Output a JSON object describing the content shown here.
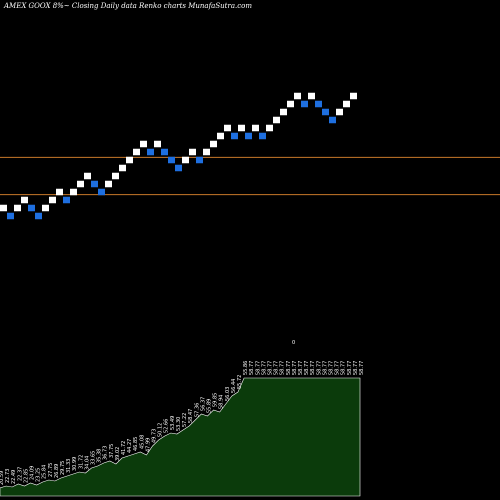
{
  "title": "AMEX  GOOX  8%~  Closing Daily data  Renko  charts MunafaSutra.com",
  "colors": {
    "background": "#000000",
    "up_brick": "#ffffff",
    "down_brick": "#1e6fe0",
    "reference_line": "#c8782a",
    "volume_fill": "#0b3b0b",
    "volume_stroke": "#ffffff"
  },
  "marker_label": "0",
  "chart_data": {
    "type": "renko",
    "legend": "none",
    "grid": false,
    "reference_lines": [
      46.5,
      39.5
    ],
    "bricks": [
      {
        "price": 37.0,
        "dir": "up"
      },
      {
        "price": 35.5,
        "dir": "down"
      },
      {
        "price": 37.0,
        "dir": "up"
      },
      {
        "price": 38.5,
        "dir": "up"
      },
      {
        "price": 37.0,
        "dir": "down"
      },
      {
        "price": 35.5,
        "dir": "down"
      },
      {
        "price": 37.0,
        "dir": "up"
      },
      {
        "price": 38.5,
        "dir": "up"
      },
      {
        "price": 40.0,
        "dir": "up"
      },
      {
        "price": 38.5,
        "dir": "down"
      },
      {
        "price": 40.0,
        "dir": "up"
      },
      {
        "price": 41.5,
        "dir": "up"
      },
      {
        "price": 43.0,
        "dir": "up"
      },
      {
        "price": 41.5,
        "dir": "down"
      },
      {
        "price": 40.0,
        "dir": "down"
      },
      {
        "price": 41.5,
        "dir": "up"
      },
      {
        "price": 43.0,
        "dir": "up"
      },
      {
        "price": 44.5,
        "dir": "up"
      },
      {
        "price": 46.0,
        "dir": "up"
      },
      {
        "price": 47.5,
        "dir": "up"
      },
      {
        "price": 49.0,
        "dir": "up"
      },
      {
        "price": 47.5,
        "dir": "down"
      },
      {
        "price": 49.0,
        "dir": "up"
      },
      {
        "price": 47.5,
        "dir": "down"
      },
      {
        "price": 46.0,
        "dir": "down"
      },
      {
        "price": 44.5,
        "dir": "down"
      },
      {
        "price": 46.0,
        "dir": "up"
      },
      {
        "price": 47.5,
        "dir": "up"
      },
      {
        "price": 46.0,
        "dir": "down"
      },
      {
        "price": 47.5,
        "dir": "up"
      },
      {
        "price": 49.0,
        "dir": "up"
      },
      {
        "price": 50.5,
        "dir": "up"
      },
      {
        "price": 52.0,
        "dir": "up"
      },
      {
        "price": 50.5,
        "dir": "down"
      },
      {
        "price": 52.0,
        "dir": "up"
      },
      {
        "price": 50.5,
        "dir": "down"
      },
      {
        "price": 52.0,
        "dir": "up"
      },
      {
        "price": 50.5,
        "dir": "down"
      },
      {
        "price": 52.0,
        "dir": "up"
      },
      {
        "price": 53.5,
        "dir": "up"
      },
      {
        "price": 55.0,
        "dir": "up"
      },
      {
        "price": 56.5,
        "dir": "up"
      },
      {
        "price": 58.0,
        "dir": "up"
      },
      {
        "price": 56.5,
        "dir": "down"
      },
      {
        "price": 58.0,
        "dir": "up"
      },
      {
        "price": 56.5,
        "dir": "down"
      },
      {
        "price": 55.0,
        "dir": "down"
      },
      {
        "price": 53.5,
        "dir": "down"
      },
      {
        "price": 55.0,
        "dir": "up"
      },
      {
        "price": 56.5,
        "dir": "up"
      },
      {
        "price": 58.0,
        "dir": "up"
      }
    ],
    "volume": {
      "values": [
        8,
        10,
        9,
        12,
        10,
        13,
        11,
        14,
        16,
        15,
        18,
        20,
        22,
        24,
        23,
        28,
        30,
        33,
        35,
        32,
        38,
        40,
        42,
        44,
        41,
        50,
        56,
        60,
        63,
        62,
        66,
        70,
        76,
        82,
        80,
        86,
        84,
        92,
        100,
        104,
        118,
        118,
        118,
        118,
        118,
        118,
        118,
        118,
        118,
        118,
        118,
        118,
        118,
        118,
        118,
        118,
        118,
        118,
        118,
        118
      ],
      "labels": [
        "20.59",
        "22.73",
        "22.49",
        "22.37",
        "22.85",
        "24.09",
        "23.25",
        "25.84",
        "27.75",
        "26.89",
        "29.75",
        "31.33",
        "30.99",
        "31.72",
        "34.04",
        "33.65",
        "35.38",
        "36.73",
        "37.75",
        "39.02",
        "41.72",
        "44.27",
        "46.85",
        "45.08",
        "47.99",
        "49.73",
        "50.12",
        "52.66",
        "53.49",
        "53.30",
        "57.22",
        "58.47",
        "57.36",
        "56.37",
        "55.89",
        "59.85",
        "58.94",
        "56.03",
        "56.44",
        "55.72",
        "55.86",
        "58.77",
        "58.77",
        "58.77",
        "58.77",
        "58.77",
        "58.77",
        "58.77",
        "58.77",
        "58.77",
        "58.77",
        "58.77",
        "58.77",
        "58.77",
        "58.77",
        "58.77",
        "58.77",
        "58.77",
        "58.77",
        "58.77"
      ]
    }
  }
}
